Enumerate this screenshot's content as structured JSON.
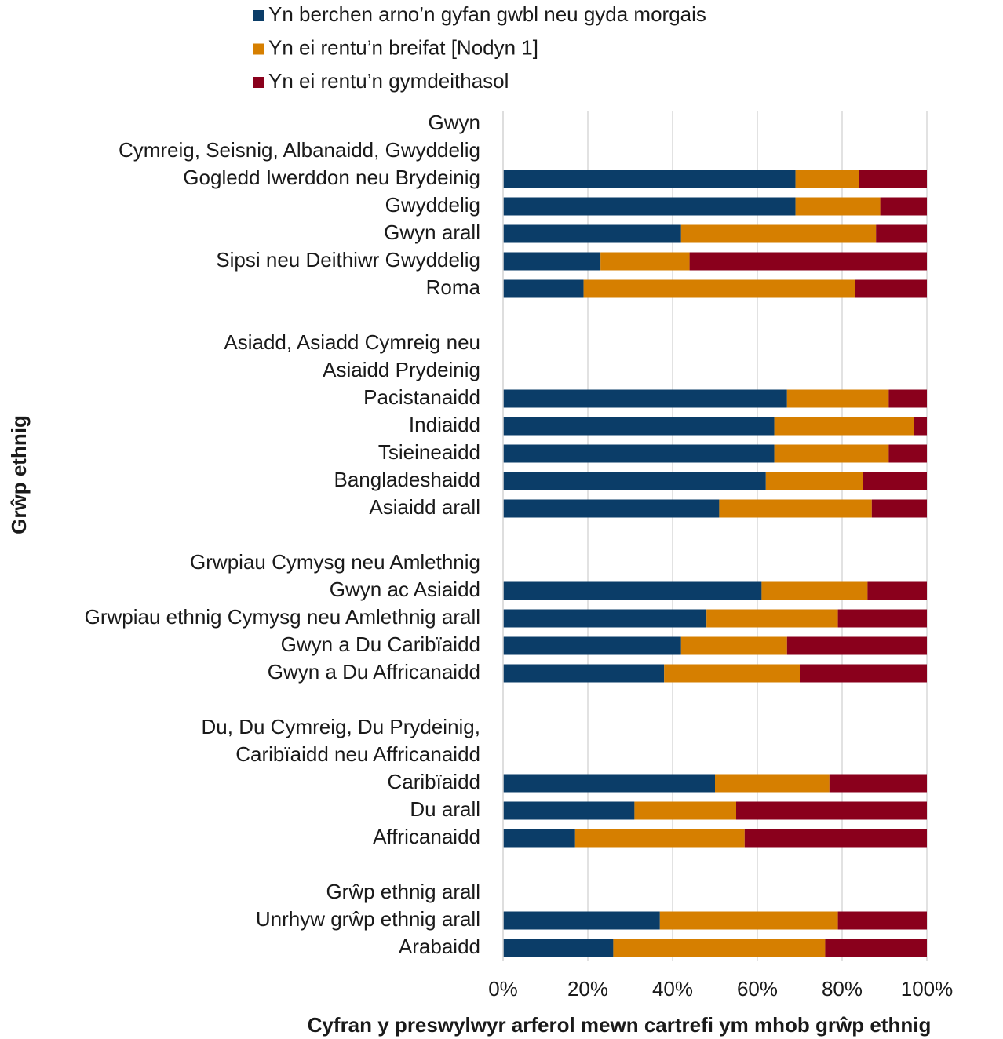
{
  "chart_data": {
    "type": "stacked_bar_horizontal",
    "x_label": "Cyfran y preswylwyr arferol mewn cartrefi ym mhob  grŵp ethnig",
    "y_label": "Grŵp ethnig",
    "categories": [
      "Gwyn",
      "Cymreig, Seisnig, Albanaidd, Gwyddelig",
      "Gogledd Iwerddon neu Brydeinig",
      "Gwyddelig",
      "Gwyn arall",
      "Sipsi neu Deithiwr Gwyddelig",
      "Roma",
      null,
      "Asiadd, Asiadd Cymreig neu",
      "Asiaidd Prydeinig",
      "Pacistanaidd",
      "Indiaidd",
      "Tsieineaidd",
      "Bangladeshaidd",
      "Asiaidd arall",
      null,
      "Grwpiau Cymysg neu Amlethnig",
      "Gwyn ac Asiaidd",
      "Grwpiau ethnig Cymysg neu Amlethnig arall",
      "Gwyn a Du Caribïaidd",
      "Gwyn a Du Affricanaidd",
      null,
      "Du, Du Cymreig, Du Prydeinig,",
      "Caribïaidd neu Affricanaidd",
      "Caribïaidd",
      "Du arall",
      "Affricanaidd",
      null,
      "Grŵp ethnig arall",
      "Unrhyw grŵp ethnig arall",
      "Arabaidd"
    ],
    "series": [
      {
        "name": "Yn berchen arno’n gyfan gwbl neu gyda morgais",
        "color": "#0b3d68",
        "values": [
          null,
          null,
          69,
          69,
          42,
          23,
          19,
          null,
          null,
          null,
          67,
          64,
          64,
          62,
          51,
          null,
          null,
          61,
          48,
          42,
          38,
          null,
          null,
          null,
          50,
          31,
          17,
          null,
          null,
          37,
          26
        ]
      },
      {
        "name": "Yn ei rentu’n breifat [Nodyn 1]",
        "color": "#d67f00",
        "values": [
          null,
          null,
          15,
          20,
          46,
          21,
          64,
          null,
          null,
          null,
          24,
          33,
          27,
          23,
          36,
          null,
          null,
          25,
          31,
          25,
          32,
          null,
          null,
          null,
          27,
          24,
          40,
          null,
          null,
          42,
          50
        ]
      },
      {
        "name": "Yn ei rentu’n gymdeithasol",
        "color": "#8a001c",
        "values": [
          null,
          null,
          16,
          11,
          12,
          56,
          17,
          null,
          null,
          null,
          9,
          3,
          9,
          15,
          13,
          null,
          null,
          14,
          21,
          33,
          30,
          null,
          null,
          null,
          23,
          45,
          43,
          null,
          null,
          21,
          24
        ]
      }
    ],
    "xlim": [
      0,
      100
    ],
    "xticks": [
      {
        "value": 0,
        "label": "0%"
      },
      {
        "value": 20,
        "label": "20%"
      },
      {
        "value": 40,
        "label": "40%"
      },
      {
        "value": 60,
        "label": "60%"
      },
      {
        "value": 80,
        "label": "80%"
      },
      {
        "value": 100,
        "label": "100%"
      }
    ],
    "grid": true
  }
}
